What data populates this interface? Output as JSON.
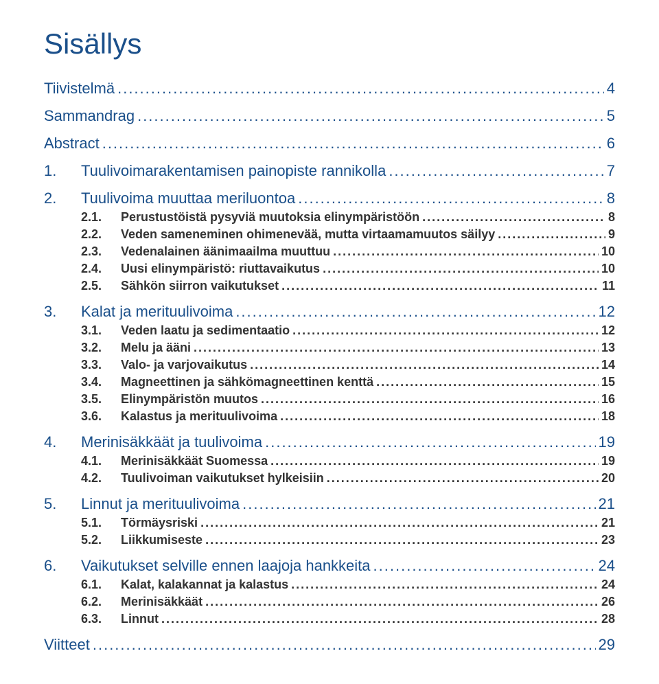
{
  "title": "Sisällys",
  "colors": {
    "heading": "#1a4f8a",
    "body": "#333333",
    "background": "#ffffff"
  },
  "typography": {
    "title_fontsize": 42,
    "lvl1_fontsize": 22,
    "lvl2_fontsize": 18,
    "lvl2_fontweight": "bold"
  },
  "toc": [
    {
      "level": 0,
      "label": "Tiivistelmä",
      "page": "4"
    },
    {
      "level": 0,
      "label": "Sammandrag",
      "page": "5"
    },
    {
      "level": 0,
      "label": "Abstract",
      "page": "6"
    },
    {
      "level": 1,
      "num": "1.",
      "label": "Tuulivoimarakentamisen painopiste rannikolla",
      "page": "7"
    },
    {
      "level": 1,
      "num": "2.",
      "label": "Tuulivoima muuttaa meriluontoa",
      "page": "8"
    },
    {
      "level": 2,
      "num": "2.1.",
      "label": "Perustustöistä pysyviä muutoksia elinympäristöön",
      "page": "8"
    },
    {
      "level": 2,
      "num": "2.2.",
      "label": "Veden sameneminen ohimenevää, mutta virtaamamuutos säilyy",
      "page": "9"
    },
    {
      "level": 2,
      "num": "2.3.",
      "label": "Vedenalainen äänimaailma muuttuu",
      "page": "10"
    },
    {
      "level": 2,
      "num": "2.4.",
      "label": "Uusi elinympäristö: riuttavaikutus",
      "page": "10"
    },
    {
      "level": 2,
      "num": "2.5.",
      "label": "Sähkön siirron vaikutukset",
      "page": "11"
    },
    {
      "level": 1,
      "num": "3.",
      "label": "Kalat ja merituulivoima",
      "page": "12"
    },
    {
      "level": 2,
      "num": "3.1.",
      "label": "Veden laatu ja sedimentaatio",
      "page": "12"
    },
    {
      "level": 2,
      "num": "3.2.",
      "label": "Melu ja ääni",
      "page": "13"
    },
    {
      "level": 2,
      "num": "3.3.",
      "label": "Valo- ja varjovaikutus",
      "page": "14"
    },
    {
      "level": 2,
      "num": "3.4.",
      "label": "Magneettinen ja sähkömagneettinen kenttä",
      "page": "15"
    },
    {
      "level": 2,
      "num": "3.5.",
      "label": "Elinympäristön muutos",
      "page": "16"
    },
    {
      "level": 2,
      "num": "3.6.",
      "label": "Kalastus ja merituulivoima",
      "page": "18"
    },
    {
      "level": 1,
      "num": "4.",
      "label": "Merinisäkkäät ja tuulivoima",
      "page": "19"
    },
    {
      "level": 2,
      "num": "4.1.",
      "label": "Merinisäkkäät Suomessa",
      "page": "19"
    },
    {
      "level": 2,
      "num": "4.2.",
      "label": "Tuulivoiman vaikutukset hylkeisiin",
      "page": "20"
    },
    {
      "level": 1,
      "num": "5.",
      "label": "Linnut ja merituulivoima",
      "page": "21"
    },
    {
      "level": 2,
      "num": "5.1.",
      "label": "Törmäysriski",
      "page": "21"
    },
    {
      "level": 2,
      "num": "5.2.",
      "label": "Liikkumiseste",
      "page": "23"
    },
    {
      "level": 1,
      "num": "6.",
      "label": "Vaikutukset selville ennen laajoja hankkeita",
      "page": "24"
    },
    {
      "level": 2,
      "num": "6.1.",
      "label": "Kalat, kalakannat ja kalastus",
      "page": "24"
    },
    {
      "level": 2,
      "num": "6.2.",
      "label": "Merinisäkkäät",
      "page": "26"
    },
    {
      "level": 2,
      "num": "6.3.",
      "label": "Linnut",
      "page": "28"
    },
    {
      "level": 0,
      "label": "Viitteet",
      "page": "29"
    }
  ]
}
